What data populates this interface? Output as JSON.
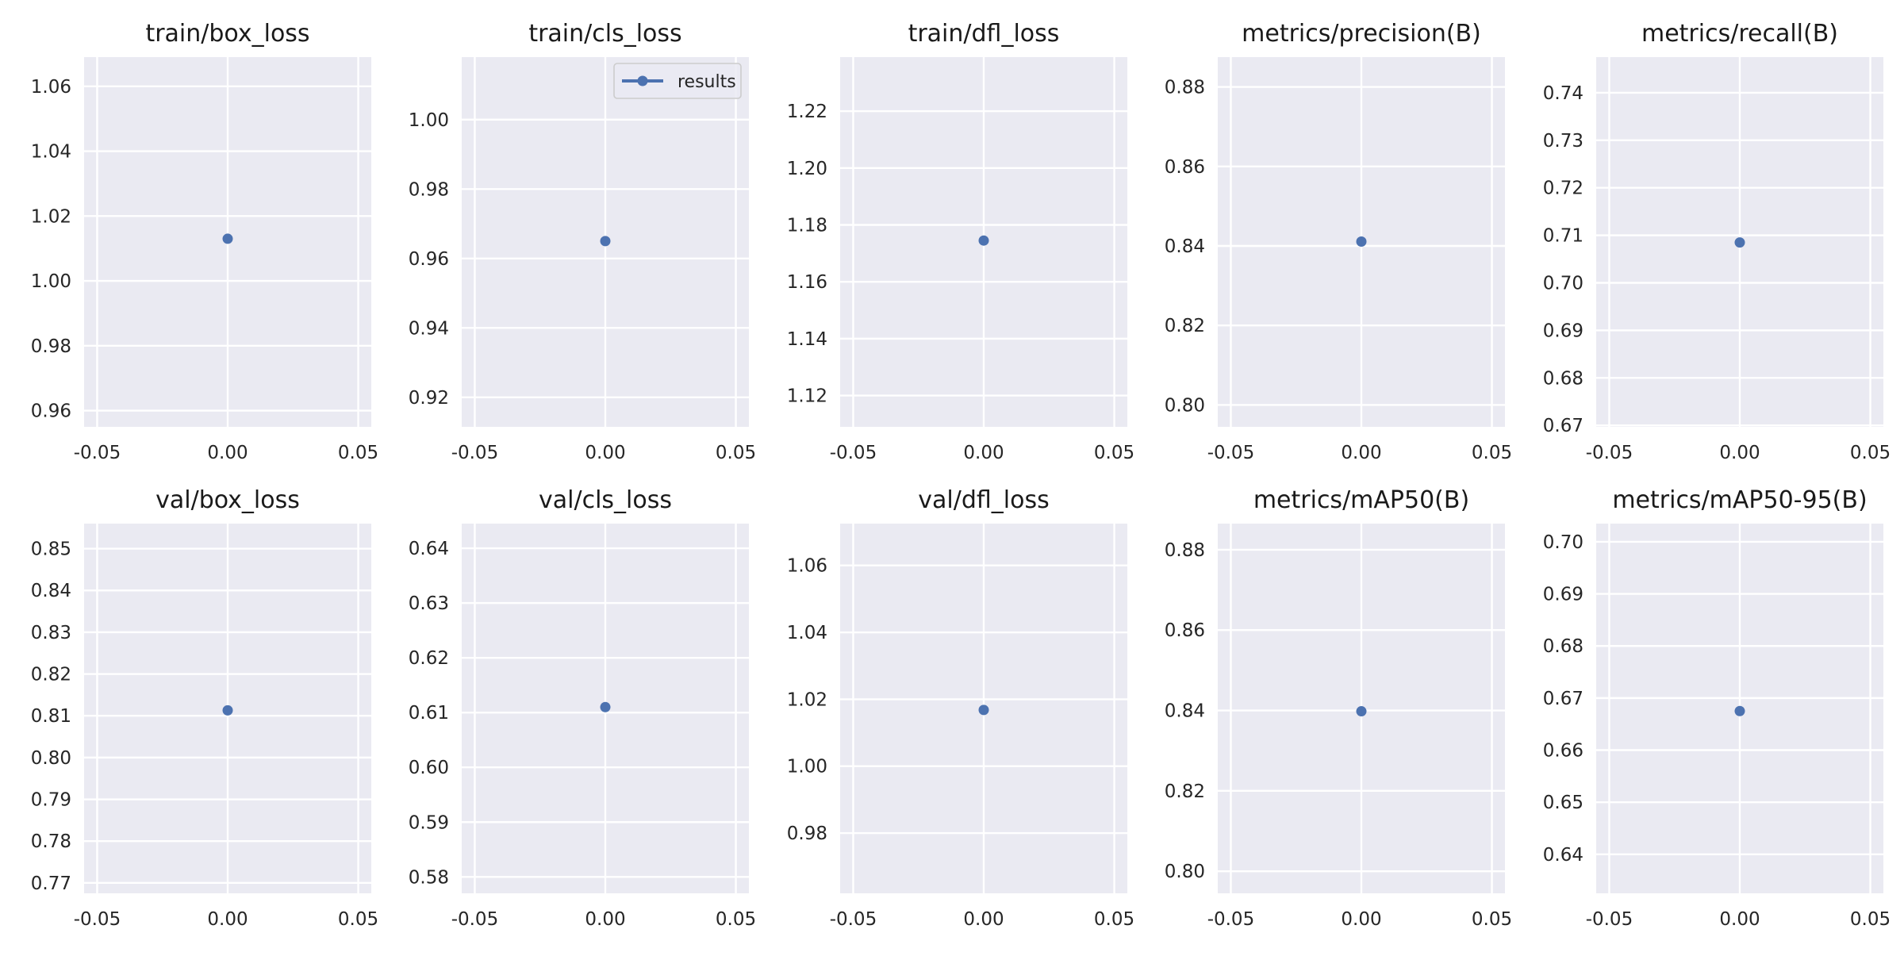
{
  "colors": {
    "axes_background": "#eaeaf2",
    "grid": "#ffffff",
    "series": "#4c72b0",
    "legend_border": "#cccccc"
  },
  "chart_data": [
    {
      "type": "line",
      "title": "train/box_loss",
      "x": [
        0.0
      ],
      "series": [
        {
          "name": "results",
          "values": [
            1.013
          ],
          "marker": "circle"
        }
      ],
      "xlim": [
        -0.055,
        0.055
      ],
      "ylim": [
        0.955,
        1.069
      ],
      "xticks": [
        "-0.05",
        "0.00",
        "0.05"
      ],
      "yticks": [
        "0.96",
        "0.98",
        "1.00",
        "1.02",
        "1.04",
        "1.06"
      ],
      "grid": true,
      "legend": null
    },
    {
      "type": "line",
      "title": "train/cls_loss",
      "x": [
        0.0
      ],
      "series": [
        {
          "name": "results",
          "values": [
            0.965
          ],
          "marker": "circle"
        }
      ],
      "xlim": [
        -0.055,
        0.055
      ],
      "ylim": [
        0.9115,
        1.018
      ],
      "xticks": [
        "-0.05",
        "0.00",
        "0.05"
      ],
      "yticks": [
        "0.92",
        "0.94",
        "0.96",
        "0.98",
        "1.00"
      ],
      "grid": true,
      "legend": "top-right"
    },
    {
      "type": "line",
      "title": "train/dfl_loss",
      "x": [
        0.0
      ],
      "series": [
        {
          "name": "results",
          "values": [
            1.1745
          ],
          "marker": "circle"
        }
      ],
      "xlim": [
        -0.055,
        0.055
      ],
      "ylim": [
        1.109,
        1.239
      ],
      "xticks": [
        "-0.05",
        "0.00",
        "0.05"
      ],
      "yticks": [
        "1.12",
        "1.14",
        "1.16",
        "1.18",
        "1.20",
        "1.22"
      ],
      "grid": true,
      "legend": null
    },
    {
      "type": "line",
      "title": "metrics/precision(B)",
      "x": [
        0.0
      ],
      "series": [
        {
          "name": "results",
          "values": [
            0.8411
          ],
          "marker": "circle"
        }
      ],
      "xlim": [
        -0.055,
        0.055
      ],
      "ylim": [
        0.7945,
        0.8875
      ],
      "xticks": [
        "-0.05",
        "0.00",
        "0.05"
      ],
      "yticks": [
        "0.80",
        "0.82",
        "0.84",
        "0.86",
        "0.88"
      ],
      "grid": true,
      "legend": null
    },
    {
      "type": "line",
      "title": "metrics/recall(B)",
      "x": [
        0.0
      ],
      "series": [
        {
          "name": "results",
          "values": [
            0.7085
          ],
          "marker": "circle"
        }
      ],
      "xlim": [
        -0.055,
        0.055
      ],
      "ylim": [
        0.6697,
        0.7475
      ],
      "xticks": [
        "-0.05",
        "0.00",
        "0.05"
      ],
      "yticks": [
        "0.67",
        "0.68",
        "0.69",
        "0.70",
        "0.71",
        "0.72",
        "0.73",
        "0.74"
      ],
      "grid": true,
      "legend": null
    },
    {
      "type": "line",
      "title": "val/box_loss",
      "x": [
        0.0
      ],
      "series": [
        {
          "name": "results",
          "values": [
            0.8113
          ],
          "marker": "circle"
        }
      ],
      "xlim": [
        -0.055,
        0.055
      ],
      "ylim": [
        0.7675,
        0.856
      ],
      "xticks": [
        "-0.05",
        "0.00",
        "0.05"
      ],
      "yticks": [
        "0.77",
        "0.78",
        "0.79",
        "0.80",
        "0.81",
        "0.82",
        "0.83",
        "0.84",
        "0.85"
      ],
      "grid": true,
      "legend": null
    },
    {
      "type": "line",
      "title": "val/cls_loss",
      "x": [
        0.0
      ],
      "series": [
        {
          "name": "results",
          "values": [
            0.611
          ],
          "marker": "circle"
        }
      ],
      "xlim": [
        -0.055,
        0.055
      ],
      "ylim": [
        0.577,
        0.6445
      ],
      "xticks": [
        "-0.05",
        "0.00",
        "0.05"
      ],
      "yticks": [
        "0.58",
        "0.59",
        "0.60",
        "0.61",
        "0.62",
        "0.63",
        "0.64"
      ],
      "grid": true,
      "legend": null
    },
    {
      "type": "line",
      "title": "val/dfl_loss",
      "x": [
        0.0
      ],
      "series": [
        {
          "name": "results",
          "values": [
            1.0168
          ],
          "marker": "circle"
        }
      ],
      "xlim": [
        -0.055,
        0.055
      ],
      "ylim": [
        0.962,
        1.0725
      ],
      "xticks": [
        "-0.05",
        "0.00",
        "0.05"
      ],
      "yticks": [
        "0.98",
        "1.00",
        "1.02",
        "1.04",
        "1.06"
      ],
      "grid": true,
      "legend": null
    },
    {
      "type": "line",
      "title": "metrics/mAP50(B)",
      "x": [
        0.0
      ],
      "series": [
        {
          "name": "results",
          "values": [
            0.8398
          ],
          "marker": "circle"
        }
      ],
      "xlim": [
        -0.055,
        0.055
      ],
      "ylim": [
        0.7945,
        0.8865
      ],
      "xticks": [
        "-0.05",
        "0.00",
        "0.05"
      ],
      "yticks": [
        "0.80",
        "0.82",
        "0.84",
        "0.86",
        "0.88"
      ],
      "grid": true,
      "legend": null
    },
    {
      "type": "line",
      "title": "metrics/mAP50-95(B)",
      "x": [
        0.0
      ],
      "series": [
        {
          "name": "results",
          "values": [
            0.6675
          ],
          "marker": "circle"
        }
      ],
      "xlim": [
        -0.055,
        0.055
      ],
      "ylim": [
        0.6325,
        0.7035
      ],
      "xticks": [
        "-0.05",
        "0.00",
        "0.05"
      ],
      "yticks": [
        "0.64",
        "0.65",
        "0.66",
        "0.67",
        "0.68",
        "0.69",
        "0.70"
      ],
      "grid": true,
      "legend": null
    }
  ]
}
